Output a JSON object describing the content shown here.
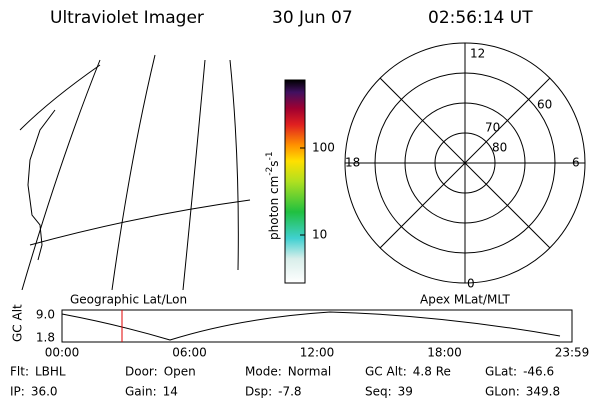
{
  "header": {
    "title": "Ultraviolet Imager",
    "date": "30 Jun 07",
    "time": "02:56:14 UT"
  },
  "colorbar": {
    "label": "photon cm",
    "exp1": "-2",
    "unit2": "s",
    "exp2": "-1",
    "ticks": [
      "100",
      "10"
    ]
  },
  "polar": {
    "mlt": [
      "12",
      "6",
      "0",
      "18"
    ],
    "mlat": [
      "60",
      "70",
      "80"
    ]
  },
  "map": {
    "label": "Geographic Lat/Lon"
  },
  "apex": {
    "label": "Apex MLat/MLT"
  },
  "altitude": {
    "axis_label": "GC Alt",
    "ticks": [
      "9.0",
      "1.8"
    ],
    "times": [
      "00:00",
      "06:00",
      "12:00",
      "18:00",
      "23:59"
    ]
  },
  "info": [
    [
      {
        "label": "Flt:",
        "value": "LBHL"
      },
      {
        "label": "Door:",
        "value": "Open"
      },
      {
        "label": "Mode:",
        "value": "Normal"
      },
      {
        "label": "GC Alt:",
        "value": "4.8 Re"
      },
      {
        "label": "GLat:",
        "value": "-46.6"
      }
    ],
    [
      {
        "label": "IP:",
        "value": "36.0"
      },
      {
        "label": "Gain:",
        "value": "14"
      },
      {
        "label": "Dsp:",
        "value": "-7.8"
      },
      {
        "label": "Seq:",
        "value": "39"
      },
      {
        "label": "GLon:",
        "value": "349.8"
      }
    ]
  ]
}
